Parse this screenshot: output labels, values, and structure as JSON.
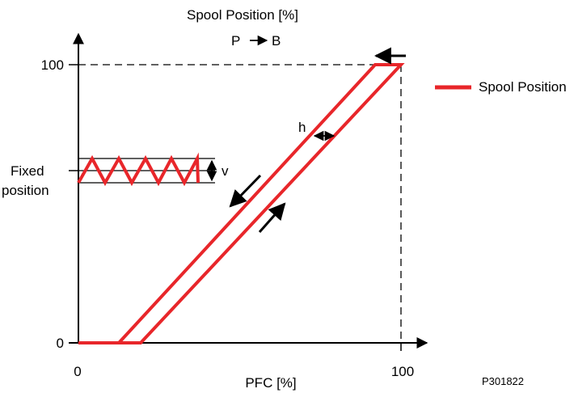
{
  "diagram": {
    "y_axis_title": "Spool Position [%]",
    "direction_label": "P",
    "direction_target": "B",
    "y_tick_top": "100",
    "y_tick_bottom": "0",
    "x_tick_left": "0",
    "x_tick_right": "100",
    "x_axis_title": "PFC [%]",
    "fixed_position_line1": "Fixed",
    "fixed_position_line2": "position",
    "hysteresis_label": "h",
    "variation_label": "v",
    "legend_label": "Spool Position",
    "figure_id": "P301822",
    "colors": {
      "series": "#e8262a",
      "axis": "#000000"
    }
  }
}
